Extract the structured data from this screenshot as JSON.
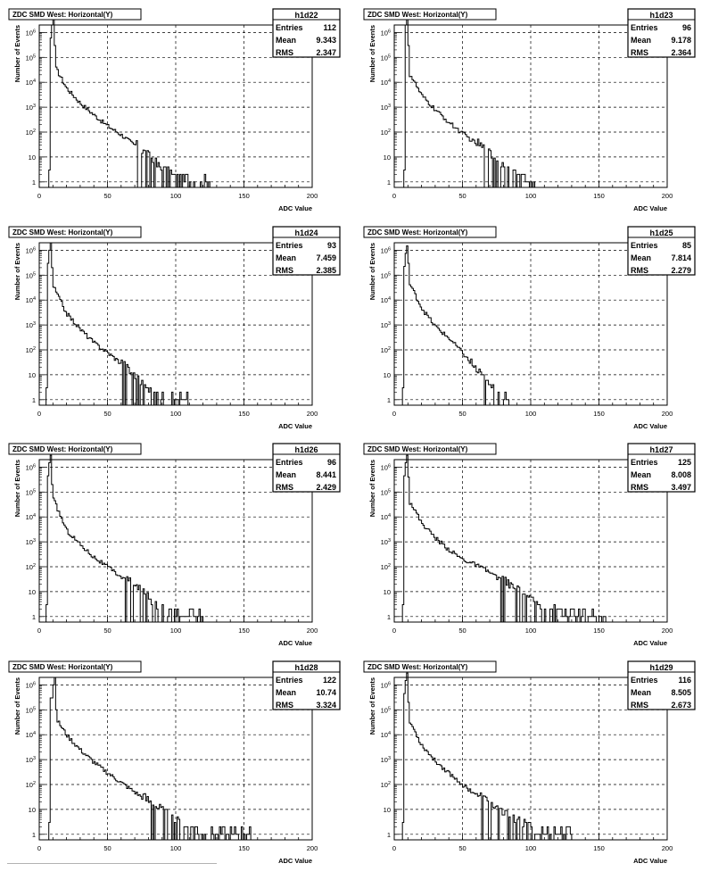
{
  "chart_data": [
    {
      "type": "histogram",
      "title": "ZDC SMD West: Horizontal(Y)",
      "xlabel": "ADC Value",
      "ylabel": "Number of Events",
      "xlim": [
        0,
        200
      ],
      "ylog": true,
      "ylim": [
        0.6,
        2000000
      ],
      "x_ticks": [
        "0",
        "50",
        "100",
        "150",
        "200"
      ],
      "y_ticks": [
        "1",
        "10",
        "10^2",
        "10^3",
        "10^4",
        "10^5",
        "10^6"
      ],
      "grid": true,
      "stats": {
        "name": "h1d22",
        "rows": [
          [
            "Entries",
            "112"
          ],
          [
            "Mean",
            "9.343"
          ],
          [
            "RMS",
            "2.347"
          ]
        ]
      },
      "shape": {
        "start": 7,
        "peak_x": 10,
        "peak": 4000000,
        "drop": 300000,
        "tail": [
          [
            12,
            40000
          ],
          [
            20,
            6000
          ],
          [
            30,
            1500
          ],
          [
            40,
            500
          ],
          [
            50,
            180
          ],
          [
            60,
            80
          ],
          [
            70,
            30
          ],
          [
            80,
            10
          ],
          [
            90,
            3
          ],
          [
            100,
            1.5
          ],
          [
            110,
            1
          ],
          [
            125,
            1
          ]
        ]
      }
    },
    {
      "type": "histogram",
      "title": "ZDC SMD West: Horizontal(Y)",
      "xlabel": "ADC Value",
      "ylabel": "Number of Events",
      "xlim": [
        0,
        200
      ],
      "ylog": true,
      "ylim": [
        0.6,
        2000000
      ],
      "x_ticks": [
        "0",
        "50",
        "100",
        "150",
        "200"
      ],
      "y_ticks": [
        "1",
        "10",
        "10^2",
        "10^3",
        "10^4",
        "10^5",
        "10^6"
      ],
      "grid": true,
      "stats": {
        "name": "h1d23",
        "rows": [
          [
            "Entries",
            "96"
          ],
          [
            "Mean",
            "9.178"
          ],
          [
            "RMS",
            "2.364"
          ]
        ]
      },
      "shape": {
        "start": 7,
        "peak_x": 9,
        "peak": 4000000,
        "drop": 300000,
        "tail": [
          [
            12,
            20000
          ],
          [
            20,
            3000
          ],
          [
            30,
            800
          ],
          [
            40,
            250
          ],
          [
            50,
            90
          ],
          [
            60,
            35
          ],
          [
            70,
            12
          ],
          [
            80,
            4
          ],
          [
            90,
            1.5
          ],
          [
            100,
            1
          ],
          [
            104,
            1
          ]
        ]
      }
    },
    {
      "type": "histogram",
      "title": "ZDC SMD West: Horizontal(Y)",
      "xlabel": "ADC Value",
      "ylabel": "Number of Events",
      "xlim": [
        0,
        200
      ],
      "ylog": true,
      "ylim": [
        0.6,
        2000000
      ],
      "x_ticks": [
        "0",
        "50",
        "100",
        "150",
        "200"
      ],
      "y_ticks": [
        "1",
        "10",
        "10^2",
        "10^3",
        "10^4",
        "10^5",
        "10^6"
      ],
      "grid": true,
      "stats": {
        "name": "h1d24",
        "rows": [
          [
            "Entries",
            "93"
          ],
          [
            "Mean",
            "7.459"
          ],
          [
            "RMS",
            "2.385"
          ]
        ]
      },
      "shape": {
        "start": 5,
        "peak_x": 8,
        "peak": 2000000,
        "drop": 200000,
        "tail": [
          [
            10,
            40000
          ],
          [
            20,
            3000
          ],
          [
            30,
            700
          ],
          [
            40,
            200
          ],
          [
            50,
            80
          ],
          [
            60,
            30
          ],
          [
            70,
            8
          ],
          [
            80,
            2
          ],
          [
            90,
            1
          ],
          [
            110,
            1
          ]
        ]
      }
    },
    {
      "type": "histogram",
      "title": "ZDC SMD West: Horizontal(Y)",
      "xlabel": "ADC Value",
      "ylabel": "Number of Events",
      "xlim": [
        0,
        200
      ],
      "ylog": true,
      "ylim": [
        0.6,
        2000000
      ],
      "x_ticks": [
        "0",
        "50",
        "100",
        "150",
        "200"
      ],
      "y_ticks": [
        "1",
        "10",
        "10^2",
        "10^3",
        "10^4",
        "10^5",
        "10^6"
      ],
      "grid": true,
      "stats": {
        "name": "h1d25",
        "rows": [
          [
            "Entries",
            "85"
          ],
          [
            "Mean",
            "7.814"
          ],
          [
            "RMS",
            "2.279"
          ]
        ]
      },
      "shape": {
        "start": 6,
        "peak_x": 9,
        "peak": 1500000,
        "drop": 300000,
        "tail": [
          [
            12,
            40000
          ],
          [
            20,
            5000
          ],
          [
            30,
            900
          ],
          [
            40,
            300
          ],
          [
            50,
            80
          ],
          [
            60,
            15
          ],
          [
            70,
            3
          ],
          [
            80,
            1
          ],
          [
            85,
            1
          ]
        ]
      }
    },
    {
      "type": "histogram",
      "title": "ZDC SMD West: Horizontal(Y)",
      "xlabel": "ADC Value",
      "ylabel": "Number of Events",
      "xlim": [
        0,
        200
      ],
      "ylog": true,
      "ylim": [
        0.6,
        2000000
      ],
      "x_ticks": [
        "0",
        "50",
        "100",
        "150",
        "200"
      ],
      "y_ticks": [
        "1",
        "10",
        "10^2",
        "10^3",
        "10^4",
        "10^5",
        "10^6"
      ],
      "grid": true,
      "stats": {
        "name": "h1d26",
        "rows": [
          [
            "Entries",
            "96"
          ],
          [
            "Mean",
            "8.441"
          ],
          [
            "RMS",
            "2.429"
          ]
        ]
      },
      "shape": {
        "start": 5,
        "peak_x": 8,
        "peak": 3000000,
        "drop": 200000,
        "tail": [
          [
            10,
            60000
          ],
          [
            20,
            3000
          ],
          [
            30,
            800
          ],
          [
            40,
            250
          ],
          [
            50,
            100
          ],
          [
            60,
            40
          ],
          [
            70,
            15
          ],
          [
            80,
            5
          ],
          [
            90,
            2
          ],
          [
            100,
            1
          ],
          [
            120,
            1
          ]
        ]
      }
    },
    {
      "type": "histogram",
      "title": "ZDC SMD West: Horizontal(Y)",
      "xlabel": "ADC Value",
      "ylabel": "Number of Events",
      "xlim": [
        0,
        200
      ],
      "ylog": true,
      "ylim": [
        0.6,
        2000000
      ],
      "x_ticks": [
        "0",
        "50",
        "100",
        "150",
        "200"
      ],
      "y_ticks": [
        "1",
        "10",
        "10^2",
        "10^3",
        "10^4",
        "10^5",
        "10^6"
      ],
      "grid": true,
      "stats": {
        "name": "h1d27",
        "rows": [
          [
            "Entries",
            "125"
          ],
          [
            "Mean",
            "8.008"
          ],
          [
            "RMS",
            "3.497"
          ]
        ]
      },
      "shape": {
        "start": 6,
        "peak_x": 9,
        "peak": 3000000,
        "drop": 400000,
        "tail": [
          [
            12,
            40000
          ],
          [
            20,
            6000
          ],
          [
            30,
            1500
          ],
          [
            40,
            500
          ],
          [
            50,
            200
          ],
          [
            60,
            120
          ],
          [
            70,
            60
          ],
          [
            80,
            25
          ],
          [
            90,
            10
          ],
          [
            100,
            4
          ],
          [
            110,
            2
          ],
          [
            120,
            1.5
          ],
          [
            135,
            1
          ],
          [
            155,
            1
          ]
        ]
      }
    },
    {
      "type": "histogram",
      "title": "ZDC SMD West: Horizontal(Y)",
      "xlabel": "ADC Value",
      "ylabel": "Number of Events",
      "xlim": [
        0,
        200
      ],
      "ylog": true,
      "ylim": [
        0.6,
        2000000
      ],
      "x_ticks": [
        "0",
        "50",
        "100",
        "150",
        "200"
      ],
      "y_ticks": [
        "1",
        "10",
        "10^2",
        "10^3",
        "10^4",
        "10^5",
        "10^6"
      ],
      "grid": true,
      "stats": {
        "name": "h1d28",
        "rows": [
          [
            "Entries",
            "122"
          ],
          [
            "Mean",
            "10.74"
          ],
          [
            "RMS",
            "3.324"
          ]
        ]
      },
      "shape": {
        "start": 7,
        "peak_x": 11,
        "peak": 2000000,
        "drop": 100000,
        "tail": [
          [
            13,
            40000
          ],
          [
            20,
            10000
          ],
          [
            30,
            2500
          ],
          [
            40,
            800
          ],
          [
            50,
            300
          ],
          [
            60,
            120
          ],
          [
            70,
            50
          ],
          [
            80,
            20
          ],
          [
            90,
            8
          ],
          [
            100,
            3
          ],
          [
            110,
            1.5
          ],
          [
            125,
            1
          ],
          [
            155,
            1
          ]
        ]
      }
    },
    {
      "type": "histogram",
      "title": "ZDC SMD West: Horizontal(Y)",
      "xlabel": "ADC Value",
      "ylabel": "Number of Events",
      "xlim": [
        0,
        200
      ],
      "ylog": true,
      "ylim": [
        0.6,
        2000000
      ],
      "x_ticks": [
        "0",
        "50",
        "100",
        "150",
        "200"
      ],
      "y_ticks": [
        "1",
        "10",
        "10^2",
        "10^3",
        "10^4",
        "10^5",
        "10^6"
      ],
      "grid": true,
      "stats": {
        "name": "h1d29",
        "rows": [
          [
            "Entries",
            "116"
          ],
          [
            "Mean",
            "8.505"
          ],
          [
            "RMS",
            "2.673"
          ]
        ]
      },
      "shape": {
        "start": 6,
        "peak_x": 9,
        "peak": 3000000,
        "drop": 200000,
        "tail": [
          [
            12,
            30000
          ],
          [
            20,
            4000
          ],
          [
            30,
            900
          ],
          [
            40,
            300
          ],
          [
            50,
            100
          ],
          [
            60,
            40
          ],
          [
            70,
            15
          ],
          [
            80,
            6
          ],
          [
            90,
            3
          ],
          [
            100,
            1.5
          ],
          [
            110,
            1
          ],
          [
            130,
            1
          ]
        ]
      }
    }
  ]
}
